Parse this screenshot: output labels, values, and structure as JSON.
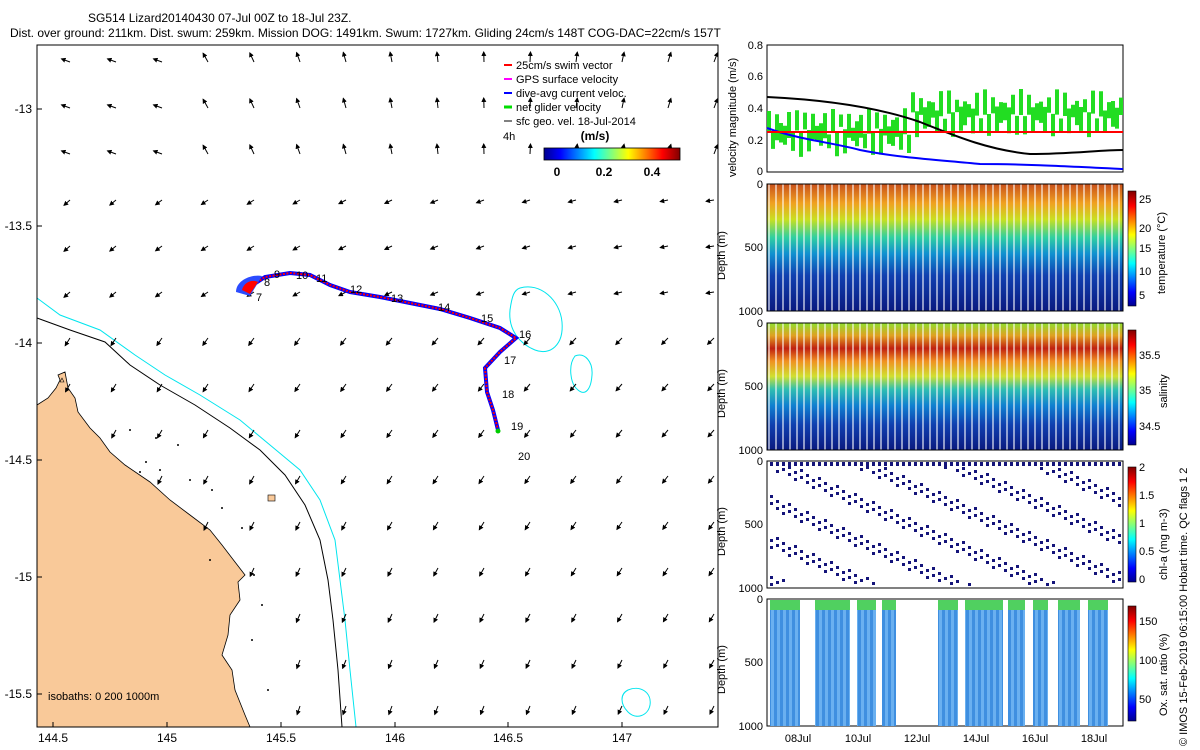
{
  "header": {
    "line1": "SG514 Lizard20140430 07-Jul 00Z to 18-Jul 23Z.",
    "line2": "Dist. over ground: 211km. Dist. swum: 259km. Mission DOG: 1491km. Swum: 1727km. Gliding 24cm/s 148T COG-DAC=22cm/s 157T"
  },
  "map": {
    "x_ticks": [
      "144.5",
      "145",
      "145.5",
      "146",
      "146.5",
      "147"
    ],
    "y_ticks": [
      "-13",
      "-13.5",
      "-14",
      "-14.5",
      "-15",
      "-15.5"
    ],
    "isobaths_label": "isobaths: 0   200  1000m",
    "time_label": "4h",
    "legend": {
      "items": [
        {
          "label": "25cm/s swim vector",
          "color": "#ff0000"
        },
        {
          "label": "GPS surface velocity",
          "color": "#ff00ff"
        },
        {
          "label": "dive-avg current veloc.",
          "color": "#0000ff"
        },
        {
          "label": "net glider velocity",
          "color": "#00dd00"
        },
        {
          "label": "sfc geo. vel. 18-Jul-2014",
          "color": "#000000"
        }
      ],
      "colorbar_title": "(m/s)",
      "colorbar_ticks": [
        "0",
        "0.2",
        "0.4"
      ]
    },
    "track_labels": [
      "7",
      "8",
      "9",
      "10",
      "11",
      "12",
      "13",
      "14",
      "15",
      "16",
      "17",
      "18",
      "19",
      "20"
    ],
    "colors": {
      "land": "#f9c999",
      "isobath200": "#00e5ee",
      "isobath1000": "#000000",
      "track": "#ff0000",
      "dac": "#0000ff"
    }
  },
  "velocity_panel": {
    "ylabel": "velocity magnitude (m/s)",
    "y_ticks": [
      "0.8",
      "0.6",
      "0.4",
      "0.2",
      "0"
    ]
  },
  "depth_panels": [
    {
      "ylabel": "Depth (m)",
      "y_ticks": [
        "0",
        "500",
        "1000"
      ],
      "cb_label": "temperature (°C)",
      "cb_ticks": [
        "25",
        "20",
        "15",
        "10",
        "5"
      ]
    },
    {
      "ylabel": "Depth (m)",
      "y_ticks": [
        "0",
        "500",
        "1000"
      ],
      "cb_label": "salinity",
      "cb_ticks": [
        "35.5",
        "35",
        "34.5"
      ]
    },
    {
      "ylabel": "Depth (m)",
      "y_ticks": [
        "0",
        "500",
        "1000"
      ],
      "cb_label": "chl-a (mg m-3)",
      "cb_ticks": [
        "2",
        "1.5",
        "1",
        "0.5",
        "0"
      ]
    },
    {
      "ylabel": "Depth (m)",
      "y_ticks": [
        "0",
        "500",
        "1000"
      ],
      "cb_label": "Ox. sat. ratio (%)",
      "cb_ticks": [
        "150",
        "100",
        "50"
      ]
    }
  ],
  "time_axis": [
    "08Jul",
    "10Jul",
    "12Jul",
    "14Jul",
    "16Jul",
    "18Jul"
  ],
  "side_note": "© IMOS 15-Feb-2019 06:15:00 Hobart time. QC flags 1  2"
}
